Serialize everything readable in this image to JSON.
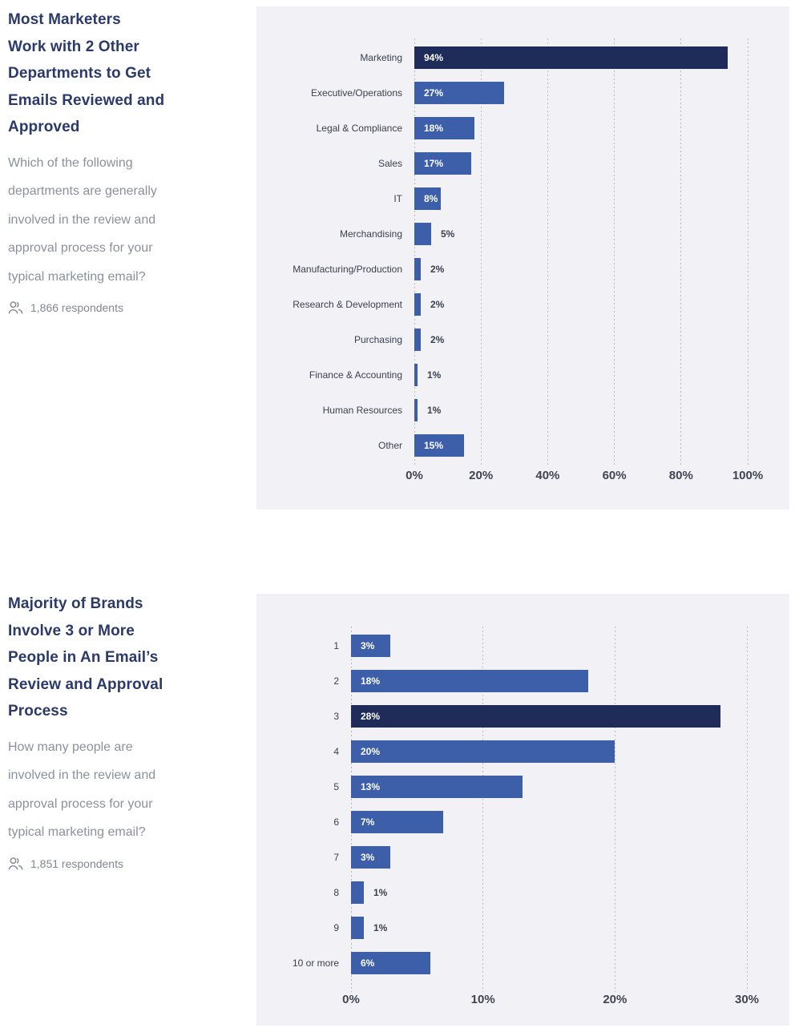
{
  "colors": {
    "panel_bg": "#f1f1f6",
    "bar": "#3d5fa9",
    "bar_highlight": "#1f2c5a",
    "grid": "#b9bdc9",
    "title": "#2b3a69",
    "subtitle": "#8b919b",
    "value_inside": "#ffffff",
    "value_outside": "#3b414d"
  },
  "sections": [
    {
      "title_lines": [
        "Most Marketers",
        "Work with 2 Other",
        "Departments to Get",
        "Emails Reviewed and",
        "Approved"
      ],
      "subtitle_lines": [
        "Which of the following",
        "departments are generally",
        "involved in the review and",
        "approval process for your",
        "typical marketing email?"
      ],
      "respondents": "1,866 respondents"
    },
    {
      "title_lines": [
        "Majority of Brands",
        "Involve 3 or More",
        "People in An Email’s",
        "Review and Approval",
        "Process"
      ],
      "subtitle_lines": [
        "How many people are",
        "involved in the review and",
        "approval process for your",
        "typical marketing email?"
      ],
      "respondents": "1,851 respondents"
    }
  ],
  "chart_data": [
    {
      "type": "bar",
      "orientation": "horizontal",
      "title": "Departments involved in review and approval of marketing email",
      "categories": [
        "Marketing",
        "Executive/Operations",
        "Legal & Compliance",
        "Sales",
        "IT",
        "Merchandising",
        "Manufacturing/Production",
        "Research & Development",
        "Purchasing",
        "Finance & Accounting",
        "Human Resources",
        "Other"
      ],
      "values": [
        94,
        27,
        18,
        17,
        8,
        5,
        2,
        2,
        2,
        1,
        1,
        15
      ],
      "value_labels": [
        "94%",
        "27%",
        "18%",
        "17%",
        "8%",
        "5%",
        "2%",
        "2%",
        "2%",
        "1%",
        "1%",
        "15%"
      ],
      "highlight_index": 0,
      "x_tick_labels": [
        "0%",
        "20%",
        "40%",
        "60%",
        "80%",
        "100%"
      ],
      "x_tick_values": [
        0,
        20,
        40,
        60,
        80,
        100
      ],
      "x_max": 100,
      "grid": "dotted-vertical",
      "legend": "none"
    },
    {
      "type": "bar",
      "orientation": "horizontal",
      "title": "Number of people involved in review and approval of marketing email",
      "categories": [
        "1",
        "2",
        "3",
        "4",
        "5",
        "6",
        "7",
        "8",
        "9",
        "10 or more"
      ],
      "values": [
        3,
        18,
        28,
        20,
        13,
        7,
        3,
        1,
        1,
        6
      ],
      "value_labels": [
        "3%",
        "18%",
        "28%",
        "20%",
        "13%",
        "7%",
        "3%",
        "1%",
        "1%",
        "6%"
      ],
      "highlight_index": 2,
      "x_tick_labels": [
        "0%",
        "10%",
        "20%",
        "30%"
      ],
      "x_tick_values": [
        0,
        10,
        20,
        30
      ],
      "x_max": 30,
      "grid": "dotted-vertical",
      "legend": "none"
    }
  ]
}
